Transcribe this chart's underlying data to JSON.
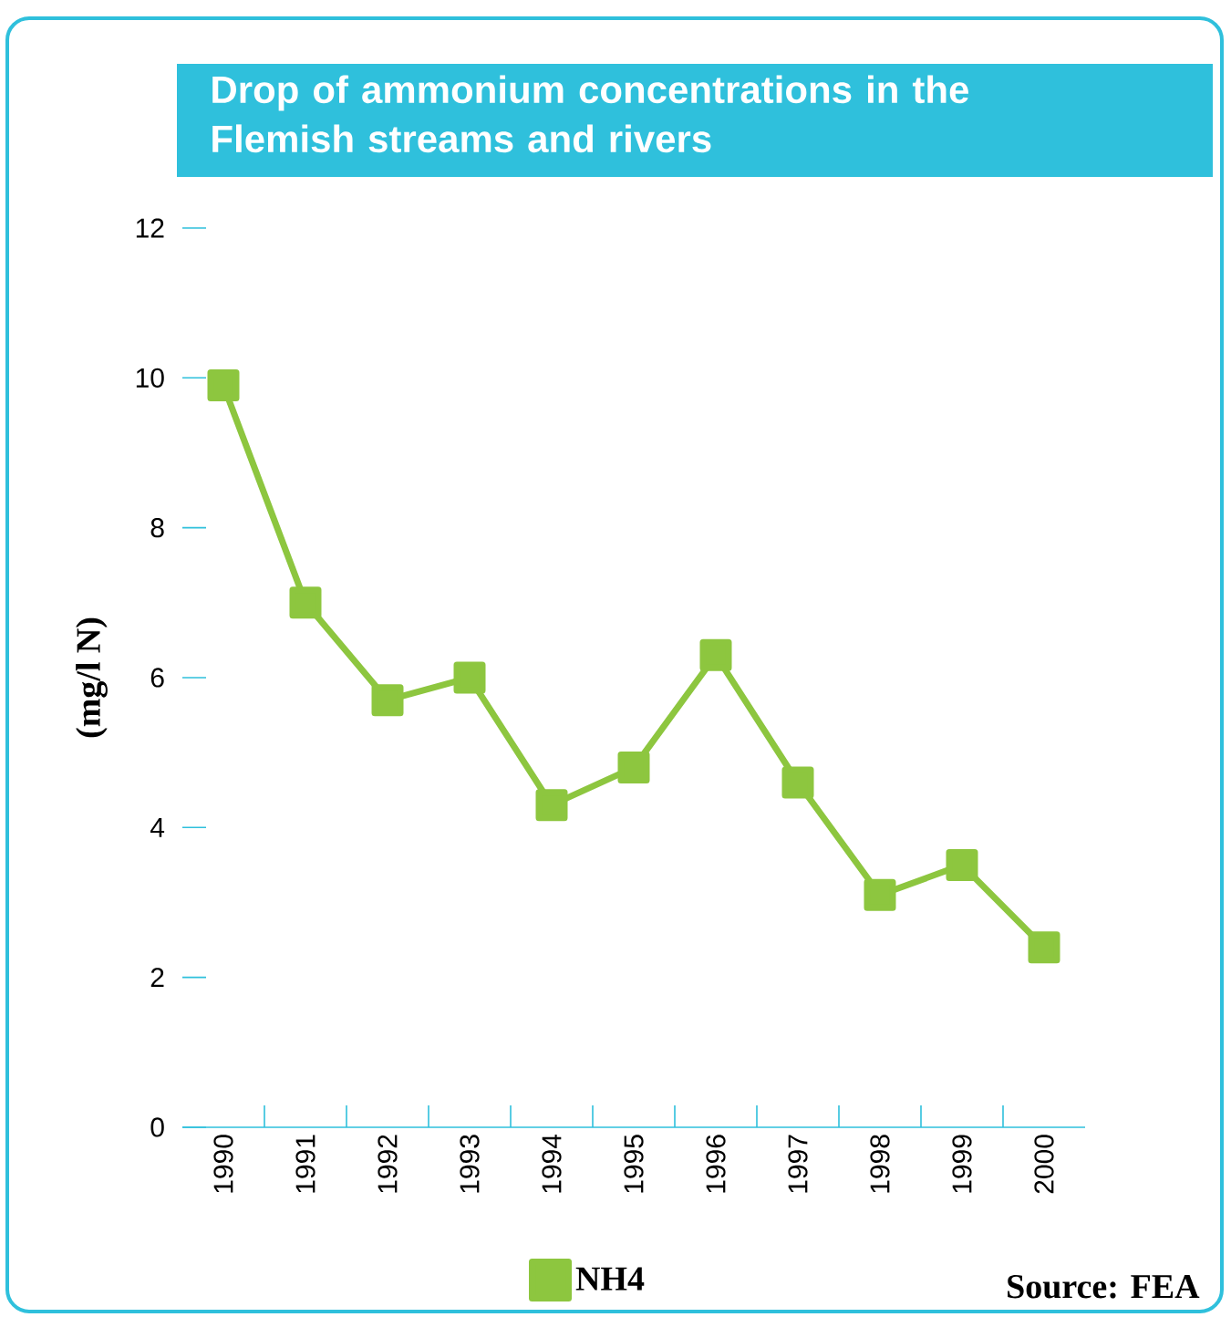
{
  "chart_data": {
    "type": "line",
    "title": "Drop of ammonium concentrations in the Flemish streams and rivers",
    "ylabel": "(mg/l N)",
    "categories": [
      "1990",
      "1991",
      "1992",
      "1993",
      "1994",
      "1995",
      "1996",
      "1997",
      "1998",
      "1999",
      "2000"
    ],
    "series": [
      {
        "name": "NH4",
        "color": "#8dc63f",
        "values": [
          9.9,
          7.0,
          5.7,
          6.0,
          4.3,
          4.8,
          6.3,
          4.6,
          3.1,
          3.5,
          2.4
        ]
      }
    ],
    "ylim": [
      0,
      12
    ],
    "yticks": [
      0,
      2,
      4,
      6,
      8,
      10,
      12
    ],
    "marker": "square",
    "legend": "bottom",
    "annotations": [
      "Source: FEA"
    ]
  }
}
